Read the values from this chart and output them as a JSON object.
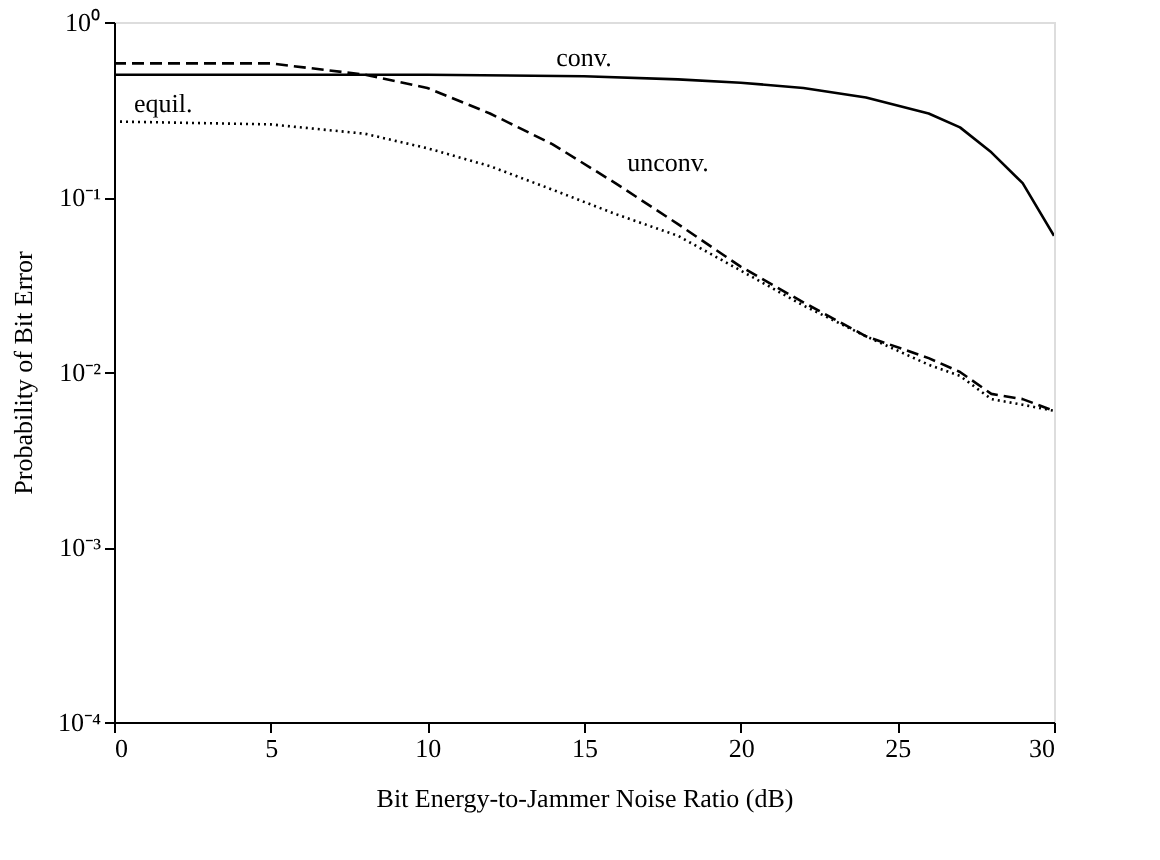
{
  "chart_data": {
    "type": "line",
    "xlabel": "Bit Energy-to-Jammer Noise Ratio  (dB)",
    "ylabel": "Probability of Bit Error",
    "log": "y",
    "grid": false,
    "marker": "none",
    "xlim": [
      0,
      30
    ],
    "xticks": [
      0,
      5,
      10,
      15,
      20,
      25,
      30
    ],
    "ylim": [
      0.0001,
      1
    ],
    "yticks": [
      {
        "value": 0.0001,
        "label": "10⁻⁴"
      },
      {
        "value": 0.001,
        "label": "10⁻³"
      },
      {
        "value": 0.01,
        "label": "10⁻²"
      },
      {
        "value": 0.1,
        "label": "10⁻¹"
      },
      {
        "value": 1,
        "label": "10⁰"
      }
    ],
    "series": [
      {
        "name": "conv.",
        "color": "#000000",
        "line_style": "solid",
        "x": [
          0,
          5,
          10,
          15,
          18,
          20,
          22,
          24,
          26,
          27,
          28,
          29,
          30
        ],
        "values": [
          0.5,
          0.5,
          0.5,
          0.49,
          0.47,
          0.45,
          0.42,
          0.37,
          0.3,
          0.25,
          0.18,
          0.12,
          0.06
        ]
      },
      {
        "name": "unconv.",
        "color": "#000000",
        "line_style": "dashed",
        "x": [
          0,
          5,
          8,
          10,
          12,
          14,
          16,
          18,
          20,
          22,
          24,
          26,
          27,
          28,
          29,
          30
        ],
        "values": [
          0.58,
          0.58,
          0.5,
          0.42,
          0.3,
          0.2,
          0.12,
          0.07,
          0.04,
          0.025,
          0.016,
          0.012,
          0.01,
          0.0075,
          0.007,
          0.006
        ]
      },
      {
        "name": "equil.",
        "color": "#000000",
        "line_style": "dotted",
        "x": [
          0,
          5,
          8,
          10,
          12,
          14,
          16,
          18,
          20,
          22,
          24,
          26,
          27,
          28,
          29,
          30
        ],
        "values": [
          0.27,
          0.26,
          0.23,
          0.19,
          0.15,
          0.11,
          0.08,
          0.06,
          0.038,
          0.024,
          0.016,
          0.011,
          0.0095,
          0.007,
          0.0065,
          0.006
        ]
      }
    ]
  }
}
